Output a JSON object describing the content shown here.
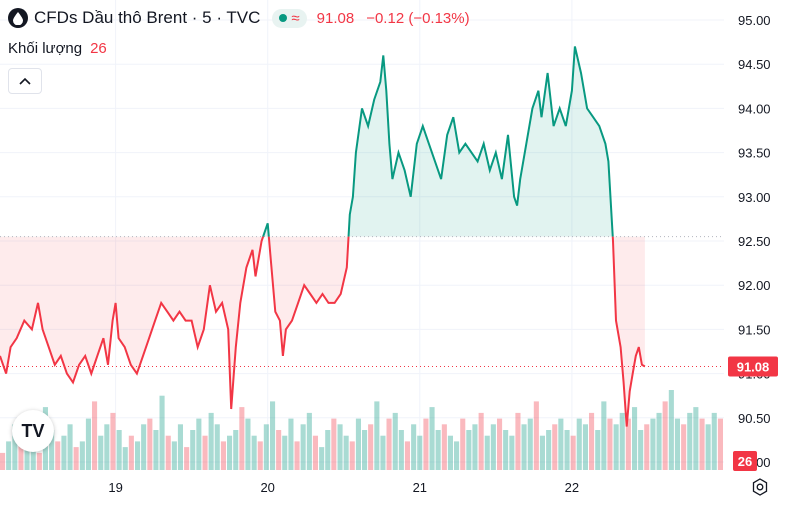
{
  "header": {
    "title": "CFDs Dầu thô Brent · 5 · TVC",
    "approx_symbol": "≈",
    "price": "91.08",
    "change": "−0.12 (−0.13%)"
  },
  "volume": {
    "label": "Khối lượng",
    "value": "26"
  },
  "logo_text": "TV",
  "colors": {
    "up": "#089981",
    "down": "#f23645",
    "grid": "#f0f3fa",
    "text": "#131722"
  },
  "chart_data": {
    "type": "area",
    "baseline": 92.55,
    "ylim": [
      90.0,
      95.0
    ],
    "y_ticks": [
      "95.00",
      "94.50",
      "94.00",
      "93.50",
      "93.00",
      "92.50",
      "92.00",
      "91.50",
      "91.00",
      "90.50",
      "90.00"
    ],
    "x_ticks": [
      {
        "label": "19",
        "x": 1
      },
      {
        "label": "20",
        "x": 2
      },
      {
        "label": "21",
        "x": 3
      },
      {
        "label": "22",
        "x": 4
      }
    ],
    "xlim": [
      0.24,
      5.0
    ],
    "points": [
      [
        0.24,
        91.2
      ],
      [
        0.28,
        91.0
      ],
      [
        0.31,
        91.3
      ],
      [
        0.35,
        91.4
      ],
      [
        0.4,
        91.6
      ],
      [
        0.45,
        91.5
      ],
      [
        0.49,
        91.8
      ],
      [
        0.52,
        91.5
      ],
      [
        0.56,
        91.3
      ],
      [
        0.6,
        91.1
      ],
      [
        0.64,
        91.2
      ],
      [
        0.68,
        91.0
      ],
      [
        0.72,
        90.9
      ],
      [
        0.76,
        91.1
      ],
      [
        0.8,
        91.2
      ],
      [
        0.84,
        91.0
      ],
      [
        0.88,
        91.2
      ],
      [
        0.92,
        91.4
      ],
      [
        0.95,
        91.1
      ],
      [
        0.98,
        91.6
      ],
      [
        1.0,
        91.8
      ],
      [
        1.02,
        91.4
      ],
      [
        1.06,
        91.3
      ],
      [
        1.1,
        91.1
      ],
      [
        1.14,
        91.0
      ],
      [
        1.18,
        91.2
      ],
      [
        1.22,
        91.4
      ],
      [
        1.26,
        91.6
      ],
      [
        1.3,
        91.8
      ],
      [
        1.34,
        91.7
      ],
      [
        1.38,
        91.6
      ],
      [
        1.42,
        91.7
      ],
      [
        1.46,
        91.6
      ],
      [
        1.5,
        91.6
      ],
      [
        1.54,
        91.3
      ],
      [
        1.58,
        91.5
      ],
      [
        1.62,
        92.0
      ],
      [
        1.66,
        91.7
      ],
      [
        1.7,
        91.8
      ],
      [
        1.74,
        91.5
      ],
      [
        1.76,
        90.6
      ],
      [
        1.79,
        91.3
      ],
      [
        1.82,
        91.8
      ],
      [
        1.86,
        92.2
      ],
      [
        1.9,
        92.4
      ],
      [
        1.92,
        92.1
      ],
      [
        1.96,
        92.5
      ],
      [
        2.0,
        92.7
      ],
      [
        2.02,
        92.3
      ],
      [
        2.05,
        91.7
      ],
      [
        2.08,
        91.6
      ],
      [
        2.1,
        91.2
      ],
      [
        2.12,
        91.5
      ],
      [
        2.16,
        91.6
      ],
      [
        2.2,
        91.8
      ],
      [
        2.24,
        92.0
      ],
      [
        2.28,
        91.9
      ],
      [
        2.32,
        91.8
      ],
      [
        2.36,
        91.9
      ],
      [
        2.4,
        91.8
      ],
      [
        2.44,
        91.8
      ],
      [
        2.48,
        91.9
      ],
      [
        2.52,
        92.2
      ],
      [
        2.54,
        92.8
      ],
      [
        2.56,
        93.0
      ],
      [
        2.58,
        93.5
      ],
      [
        2.62,
        94.0
      ],
      [
        2.66,
        93.8
      ],
      [
        2.7,
        94.1
      ],
      [
        2.74,
        94.3
      ],
      [
        2.76,
        94.6
      ],
      [
        2.78,
        94.2
      ],
      [
        2.8,
        93.6
      ],
      [
        2.82,
        93.2
      ],
      [
        2.86,
        93.5
      ],
      [
        2.9,
        93.3
      ],
      [
        2.94,
        93.0
      ],
      [
        2.98,
        93.6
      ],
      [
        3.02,
        93.8
      ],
      [
        3.06,
        93.6
      ],
      [
        3.1,
        93.4
      ],
      [
        3.14,
        93.2
      ],
      [
        3.18,
        93.7
      ],
      [
        3.22,
        93.9
      ],
      [
        3.26,
        93.5
      ],
      [
        3.3,
        93.6
      ],
      [
        3.34,
        93.5
      ],
      [
        3.38,
        93.4
      ],
      [
        3.42,
        93.6
      ],
      [
        3.46,
        93.3
      ],
      [
        3.5,
        93.5
      ],
      [
        3.54,
        93.2
      ],
      [
        3.58,
        93.7
      ],
      [
        3.62,
        93.0
      ],
      [
        3.64,
        92.9
      ],
      [
        3.66,
        93.2
      ],
      [
        3.7,
        93.6
      ],
      [
        3.74,
        94.0
      ],
      [
        3.78,
        94.2
      ],
      [
        3.8,
        93.9
      ],
      [
        3.84,
        94.4
      ],
      [
        3.88,
        93.8
      ],
      [
        3.92,
        94.0
      ],
      [
        3.96,
        93.8
      ],
      [
        4.0,
        94.2
      ],
      [
        4.02,
        94.7
      ],
      [
        4.06,
        94.4
      ],
      [
        4.1,
        94.0
      ],
      [
        4.14,
        93.9
      ],
      [
        4.18,
        93.8
      ],
      [
        4.22,
        93.6
      ],
      [
        4.24,
        93.4
      ],
      [
        4.27,
        92.5
      ],
      [
        4.29,
        91.6
      ],
      [
        4.32,
        91.3
      ],
      [
        4.34,
        90.9
      ],
      [
        4.36,
        90.4
      ],
      [
        4.38,
        90.8
      ],
      [
        4.4,
        91.0
      ],
      [
        4.42,
        91.2
      ],
      [
        4.44,
        91.3
      ],
      [
        4.46,
        91.1
      ],
      [
        4.48,
        91.08
      ]
    ],
    "volume_bars": [
      3,
      5,
      8,
      6,
      9,
      4,
      3,
      11,
      7,
      5,
      6,
      8,
      4,
      5,
      9,
      12,
      6,
      8,
      10,
      7,
      4,
      6,
      5,
      8,
      9,
      7,
      13,
      6,
      5,
      8,
      4,
      7,
      9,
      6,
      10,
      8,
      5,
      6,
      7,
      11,
      9,
      6,
      5,
      8,
      12,
      7,
      6,
      9,
      5,
      8,
      10,
      6,
      4,
      7,
      9,
      8,
      6,
      5,
      9,
      7,
      8,
      12,
      6,
      9,
      10,
      7,
      5,
      8,
      6,
      9,
      11,
      7,
      8,
      6,
      5,
      9,
      7,
      8,
      10,
      6,
      8,
      9,
      7,
      6,
      10,
      8,
      9,
      12,
      6,
      7,
      8,
      9,
      7,
      6,
      9,
      8,
      10,
      7,
      12,
      9,
      8,
      10,
      9,
      11,
      7,
      8,
      9,
      10,
      12,
      14,
      9,
      8,
      10,
      11,
      9,
      8,
      10,
      9
    ],
    "current_price": "91.08",
    "current_volume": "26"
  }
}
